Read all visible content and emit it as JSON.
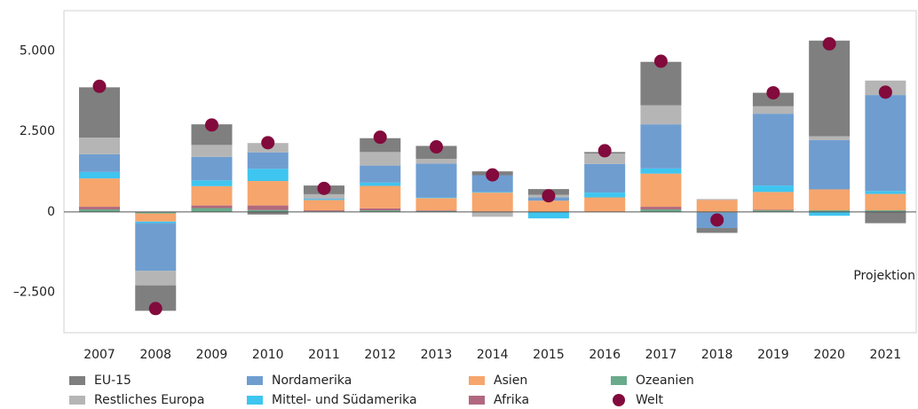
{
  "chart_data": {
    "type": "bar",
    "stacked": true,
    "categories": [
      "2007",
      "2008",
      "2009",
      "2010",
      "2011",
      "2012",
      "2013",
      "2014",
      "2015",
      "2016",
      "2017",
      "2018",
      "2019",
      "2020",
      "2021"
    ],
    "series": [
      {
        "name": "EU-15",
        "color": "#7f7f7f",
        "values": [
          1560,
          -790,
          640,
          -80,
          270,
          430,
          400,
          120,
          180,
          50,
          1350,
          -150,
          420,
          2970,
          -350
        ]
      },
      {
        "name": "Restliches Europa",
        "color": "#b5b5b5",
        "values": [
          520,
          -450,
          370,
          290,
          130,
          420,
          150,
          -150,
          80,
          320,
          590,
          30,
          230,
          120,
          450
        ]
      },
      {
        "name": "Nordamerika",
        "color": "#6f9dd0",
        "values": [
          550,
          -1480,
          730,
          510,
          20,
          530,
          1050,
          520,
          100,
          890,
          1370,
          -480,
          2230,
          1530,
          2980
        ]
      },
      {
        "name": "Mittel- und Südamerika",
        "color": "#3ec5f0",
        "values": [
          200,
          -50,
          180,
          380,
          30,
          100,
          20,
          20,
          -200,
          150,
          160,
          0,
          200,
          -120,
          90
        ]
      },
      {
        "name": "Asien",
        "color": "#f6a56c",
        "values": [
          880,
          -250,
          600,
          760,
          320,
          700,
          380,
          600,
          350,
          450,
          1030,
          370,
          550,
          650,
          510
        ]
      },
      {
        "name": "Afrika",
        "color": "#b1687f",
        "values": [
          80,
          0,
          80,
          140,
          30,
          60,
          20,
          0,
          0,
          0,
          80,
          0,
          20,
          0,
          0
        ]
      },
      {
        "name": "Ozeanien",
        "color": "#6aab8b",
        "values": [
          80,
          -50,
          120,
          60,
          20,
          50,
          30,
          0,
          0,
          0,
          80,
          -20,
          50,
          50,
          50
        ]
      },
      {
        "name": "Welt",
        "color": "#820a3c",
        "type": "dot",
        "values": [
          3900,
          -3000,
          2700,
          2150,
          730,
          2320,
          2020,
          1150,
          500,
          1900,
          4680,
          -250,
          3700,
          5220,
          3720
        ]
      }
    ],
    "ylim": [
      -3750,
      6250
    ],
    "yticks": [
      {
        "value": -2500,
        "label": "–2.500"
      },
      0,
      {
        "value": 2500,
        "label": "2.500"
      },
      {
        "value": 5000,
        "label": "5.000"
      }
    ],
    "grid": false,
    "annotation": "Projektion"
  }
}
